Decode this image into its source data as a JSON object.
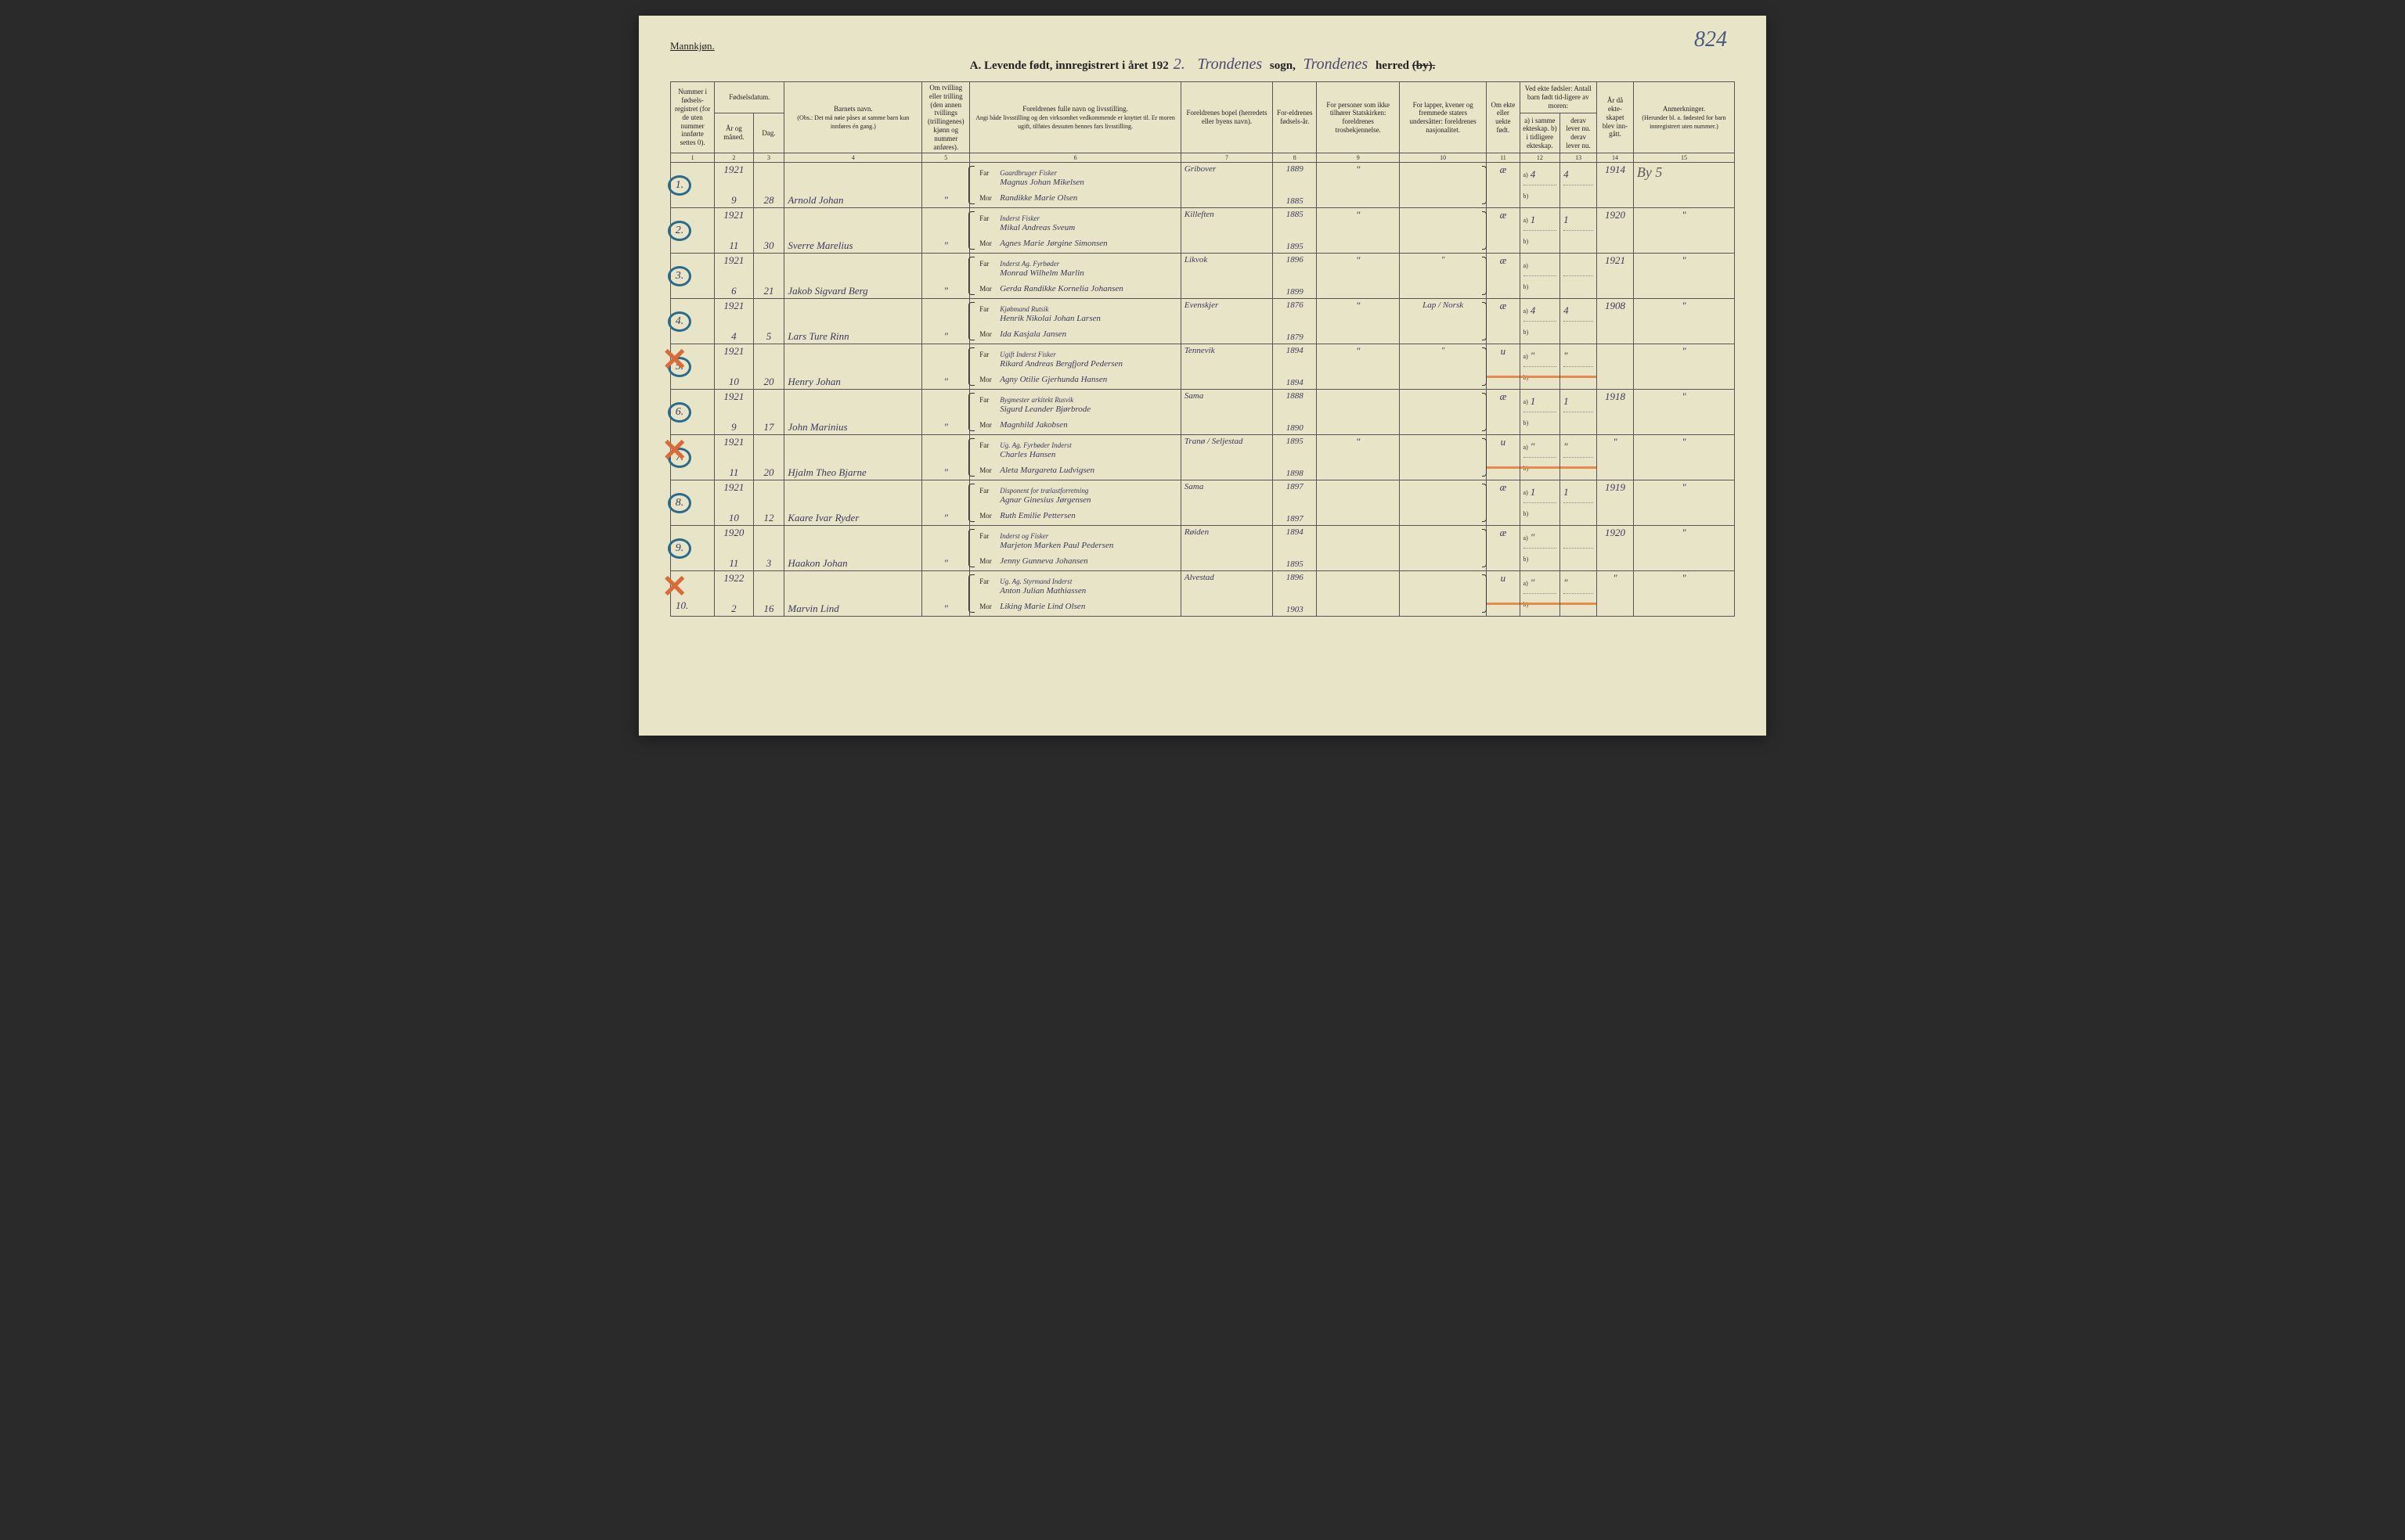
{
  "page_number": "824",
  "gender_label": "Mannkjøn.",
  "title": {
    "prefix": "A.  Levende født, innregistrert i året 192",
    "year_suffix": "2.",
    "sogn": "Trondenes",
    "sogn_label": "sogn,",
    "herred": "Trondenes",
    "herred_label": "herred",
    "by_struck": "(by)."
  },
  "headers": {
    "c1": "Nummer i fødsels-registret (for de uten nummer innførte settes 0).",
    "c2_3_group": "Fødselsdatum.",
    "c2": "År og måned.",
    "c3": "Dag.",
    "c4": "Barnets navn.",
    "c4_sub": "(Obs.: Det må nøie påses at samme barn kun innføres én gang.)",
    "c5": "Om tvilling eller trilling (den annen tvillings (trillingenes) kjønn og nummer anføres).",
    "c6": "Foreldrenes fulle navn og livsstilling.",
    "c6_sub": "Angi både livsstilling og den virksomhet vedkommende er knyttet til. Er moren ugift, tilføies dessuten hennes fars livsstilling.",
    "c7": "Foreldrenes bopel (herredets eller byens navn).",
    "c8": "For-eldrenes fødsels-år.",
    "c9": "For personer som ikke tilhører Statskirken: foreldrenes trosbekjennelse.",
    "c10": "For lapper, kvener og fremmede staters undersåtter: foreldrenes nasjonalitet.",
    "c11": "Om ekte eller uekte født.",
    "c12_13_group": "Ved ekte fødsler: Antall barn født tid-ligere av moren:",
    "c12": "a) i samme ekteskap. b) i tidligere ekteskap.",
    "c13": "derav lever nu. derav lever nu.",
    "c14": "År då ekte-skapet blev inn-gått.",
    "c15": "Anmerkninger.",
    "c15_sub": "(Herunder bl. a. fødested for barn innregistrert uten nummer.)"
  },
  "colnums": [
    "1",
    "2",
    "3",
    "4",
    "5",
    "6",
    "7",
    "8",
    "9",
    "10",
    "11",
    "12",
    "13",
    "14",
    "15"
  ],
  "far_label": "Far",
  "mor_label": "Mor",
  "a_label": "a)",
  "b_label": "b)",
  "rows": [
    {
      "num": "1.",
      "circled": true,
      "red_x": false,
      "year": "1921",
      "month": "9",
      "day": "28",
      "child": "Arnold Johan",
      "twin": "\"",
      "far_occ": "Gaardbruger Fisker",
      "far": "Magnus Johan Mikelsen",
      "mor": "Randikke Marie Olsen",
      "bopel": "Gribover",
      "far_year": "1889",
      "mor_year": "1885",
      "tros": "\"",
      "nasj": "",
      "ekte": "æ",
      "a_same": "4",
      "a_lever": "4",
      "marriage": "1914",
      "note": "By 5"
    },
    {
      "num": "2.",
      "circled": true,
      "red_x": false,
      "year": "1921",
      "month": "11",
      "day": "30",
      "child": "Sverre Marelius",
      "twin": "\"",
      "far_occ": "Inderst Fisker",
      "far": "Mikal Andreas Sveum",
      "mor": "Agnes Marie Jørgine Simonsen",
      "bopel": "Killeften",
      "far_year": "1885",
      "mor_year": "1895",
      "tros": "\"",
      "nasj": "",
      "ekte": "æ",
      "a_same": "1",
      "a_lever": "1",
      "marriage": "1920",
      "note": "\""
    },
    {
      "num": "3.",
      "circled": true,
      "red_x": false,
      "year": "1921",
      "month": "6",
      "day": "21",
      "child": "Jakob Sigvard Berg",
      "twin": "\"",
      "far_occ": "Inderst Ag. Fyrbøder",
      "far": "Monrad Wilhelm Marlin",
      "mor": "Gerda Randikke Kornelia Johansen",
      "bopel": "Likvok",
      "far_year": "1896",
      "mor_year": "1899",
      "tros": "\"",
      "nasj": "\"",
      "ekte": "æ",
      "a_same": "",
      "a_lever": "",
      "marriage": "1921",
      "note": "\""
    },
    {
      "num": "4.",
      "circled": true,
      "red_x": false,
      "year": "1921",
      "month": "4",
      "day": "5",
      "child": "Lars Ture Rinn",
      "twin": "\"",
      "far_occ": "Kjøbmand Rutsik",
      "far": "Henrik Nikolai Johan Larsen",
      "mor": "Ida Kasjala Jansen",
      "bopel": "Evenskjer",
      "far_year": "1876",
      "mor_year": "1879",
      "tros": "\"",
      "nasj": "Lap / Norsk",
      "ekte": "æ",
      "a_same": "4",
      "a_lever": "4",
      "marriage": "1908",
      "note": "\""
    },
    {
      "num": "5.",
      "circled": true,
      "red_x": true,
      "orange": true,
      "year": "1921",
      "month": "10",
      "day": "20",
      "child": "Henry Johan",
      "twin": "\"",
      "far_occ": "Ugift Inderst Fisker",
      "far": "Rikard Andreas Bergfjord Pedersen",
      "mor": "Agny Otilie Gjerhunda Hansen",
      "bopel": "Tennevik",
      "far_year": "1894",
      "mor_year": "1894",
      "tros": "\"",
      "nasj": "\"",
      "ekte": "u",
      "a_same": "\"",
      "a_lever": "\"",
      "marriage": "",
      "note": "\""
    },
    {
      "num": "6.",
      "circled": true,
      "red_x": false,
      "year": "1921",
      "month": "9",
      "day": "17",
      "child": "John Marinius",
      "twin": "\"",
      "far_occ": "Bygmester arkitekt Rusvik",
      "far": "Sigurd Leander Bjørbrode",
      "mor": "Magnhild Jakobsen",
      "bopel": "Sama",
      "far_year": "1888",
      "mor_year": "1890",
      "tros": "",
      "nasj": "",
      "ekte": "æ",
      "a_same": "1",
      "a_lever": "1",
      "marriage": "1918",
      "note": "\""
    },
    {
      "num": "7.",
      "circled": true,
      "red_x": true,
      "orange": true,
      "year": "1921",
      "month": "11",
      "day": "20",
      "child": "Hjalm Theo Bjarne",
      "twin": "\"",
      "far_occ": "Ug. Ag. Fyrbøder Inderst",
      "far": "Charles Hansen",
      "mor": "Aleta Margareta Ludvigsen",
      "bopel": "Tranø / Seljestad",
      "far_year": "1895",
      "mor_year": "1898",
      "tros": "\"",
      "nasj": "",
      "ekte": "u",
      "a_same": "\"",
      "a_lever": "\"",
      "marriage": "\"",
      "note": "\""
    },
    {
      "num": "8.",
      "circled": true,
      "red_x": false,
      "year": "1921",
      "month": "10",
      "day": "12",
      "child": "Kaare Ivar Ryder",
      "twin": "\"",
      "far_occ": "Disponent for trælastforretning",
      "far": "Agnar Ginesius Jørgensen",
      "mor": "Ruth Emilie Pettersen",
      "bopel": "Sama",
      "far_year": "1897",
      "mor_year": "1897",
      "tros": "",
      "nasj": "",
      "ekte": "æ",
      "a_same": "1",
      "a_lever": "1",
      "marriage": "1919",
      "note": "\""
    },
    {
      "num": "9.",
      "circled": true,
      "red_x": false,
      "year": "1920",
      "month": "11",
      "day": "3",
      "child": "Haakon Johan",
      "twin": "\"",
      "far_occ": "Inderst og Fisker",
      "far": "Marjeton Marken Paul Pedersen",
      "mor": "Jenny Gunneva Johansen",
      "bopel": "Røiden",
      "far_year": "1894",
      "mor_year": "1895",
      "tros": "",
      "nasj": "",
      "ekte": "æ",
      "a_same": "\"",
      "a_lever": "",
      "marriage": "1920",
      "note": "\""
    },
    {
      "num": "10.",
      "circled": false,
      "red_x": true,
      "orange": true,
      "year": "1922",
      "month": "2",
      "day": "16",
      "child": "Marvin Lind",
      "twin": "\"",
      "far_occ": "Ug. Ag. Styrmand Inderst",
      "far": "Anton Julian Mathiassen",
      "mor": "Liking Marie Lind Olsen",
      "bopel": "Alvestad",
      "far_year": "1896",
      "mor_year": "1903",
      "tros": "",
      "nasj": "",
      "ekte": "u",
      "a_same": "\"",
      "a_lever": "\"",
      "marriage": "\"",
      "note": "\""
    }
  ],
  "colors": {
    "paper": "#e8e4c8",
    "ink": "#222222",
    "handwriting": "#3a3a5a",
    "circle": "#2a6a8a",
    "red_x": "#d96a3a",
    "orange": "#e88a4a"
  }
}
